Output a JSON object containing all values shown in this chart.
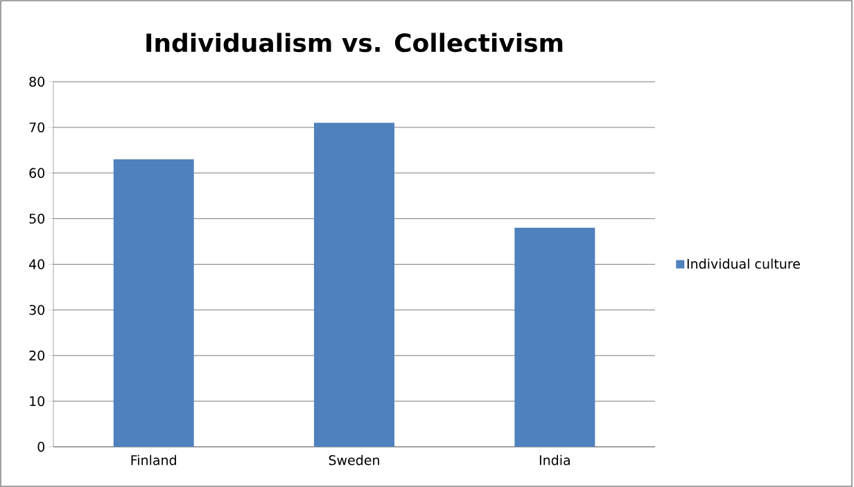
{
  "chart_data": {
    "type": "bar",
    "title": "Individualism vs. Collectivism",
    "categories": [
      "Finland",
      "Sweden",
      "India"
    ],
    "series": [
      {
        "name": "Individual culture",
        "color": "#4f81bd",
        "values": [
          63,
          71,
          48
        ]
      }
    ],
    "ylim": [
      0,
      80
    ],
    "yticks": [
      0,
      10,
      20,
      30,
      40,
      50,
      60,
      70,
      80
    ],
    "grid": "y",
    "legend": "right"
  }
}
